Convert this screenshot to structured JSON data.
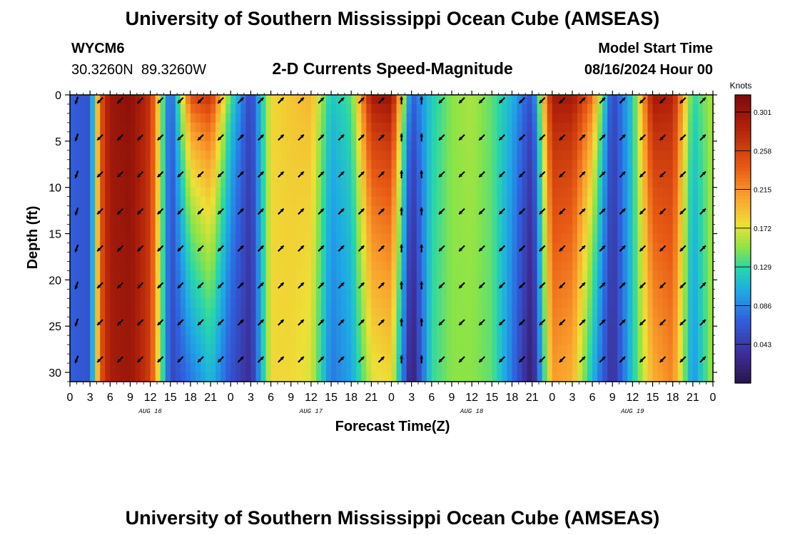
{
  "header": {
    "title": "University of Southern Mississippi Ocean Cube (AMSEAS)",
    "station_id": "WYCM6",
    "station_coords": "30.3260N  89.3260W",
    "plot_title": "2-D Currents Speed-Magnitude",
    "model_start_label": "Model Start Time",
    "model_start_value": "08/16/2024 Hour 00"
  },
  "footer": {
    "title": "University of Southern Mississippi Ocean Cube (AMSEAS)"
  },
  "chart_data": {
    "type": "heatmap",
    "title": "2-D Currents Speed-Magnitude",
    "xlabel": "Forecast Time(Z)",
    "ylabel": "Depth (ft)",
    "x_range_hours": [
      0,
      96
    ],
    "y_range_ft": [
      0,
      31
    ],
    "x_tick_hours": [
      0,
      3,
      6,
      9,
      12,
      15,
      18,
      21,
      24,
      27,
      30,
      33,
      36,
      39,
      42,
      45,
      48,
      51,
      54,
      57,
      60,
      63,
      66,
      69,
      72,
      75,
      78,
      81,
      84,
      87,
      90,
      93,
      96
    ],
    "x_tick_labels": [
      "0",
      "3",
      "6",
      "9",
      "12",
      "15",
      "18",
      "21",
      "0",
      "3",
      "6",
      "9",
      "12",
      "15",
      "18",
      "21",
      "0",
      "3",
      "6",
      "9",
      "12",
      "15",
      "18",
      "21",
      "0",
      "3",
      "6",
      "9",
      "12",
      "15",
      "18",
      "21",
      "0"
    ],
    "day_labels": [
      {
        "label": "AUG 16",
        "hour": 12
      },
      {
        "label": "AUG 17",
        "hour": 36
      },
      {
        "label": "AUG 18",
        "hour": 60
      },
      {
        "label": "AUG 19",
        "hour": 84
      }
    ],
    "y_ticks": [
      0,
      5,
      10,
      15,
      20,
      25,
      30
    ],
    "y_tick_labels": [
      "0",
      "5",
      "10",
      "15",
      "20",
      "25",
      "30"
    ],
    "colorbar": {
      "unit_label": "Knots",
      "range": [
        0.0,
        0.32
      ],
      "tick_values": [
        0.301,
        0.258,
        0.215,
        0.172,
        0.129,
        0.086,
        0.043
      ],
      "tick_labels": [
        "0.301",
        "0.258",
        "0.215",
        "0.172",
        "0.129",
        "0.086",
        "0.043"
      ]
    },
    "speed_profile": {
      "hours": [
        0,
        3,
        4.5,
        6,
        9,
        12,
        15,
        18,
        21,
        24,
        27,
        30,
        33,
        36,
        39,
        42,
        45,
        48,
        51,
        54,
        57,
        60,
        63,
        66,
        69,
        72,
        75,
        78,
        81,
        84,
        87,
        90,
        93,
        96
      ],
      "surface_knots": [
        0.07,
        0.06,
        0.24,
        0.3,
        0.31,
        0.27,
        0.06,
        0.26,
        0.28,
        0.14,
        0.05,
        0.18,
        0.19,
        0.2,
        0.12,
        0.14,
        0.3,
        0.31,
        0.07,
        0.12,
        0.15,
        0.16,
        0.14,
        0.11,
        0.06,
        0.3,
        0.3,
        0.24,
        0.05,
        0.12,
        0.3,
        0.29,
        0.13,
        0.16
      ],
      "bottom_knots": [
        0.07,
        0.06,
        0.24,
        0.29,
        0.3,
        0.26,
        0.05,
        0.08,
        0.11,
        0.06,
        0.03,
        0.18,
        0.18,
        0.17,
        0.08,
        0.1,
        0.17,
        0.18,
        0.01,
        0.13,
        0.15,
        0.15,
        0.14,
        0.08,
        0.01,
        0.21,
        0.2,
        0.11,
        0.03,
        0.12,
        0.2,
        0.22,
        0.09,
        0.16
      ]
    },
    "vector_hours": [
      1,
      4.5,
      7.5,
      10.5,
      13.5,
      16.5,
      19.5,
      22.5,
      25.5,
      28.5,
      31.5,
      34.5,
      37.5,
      40.5,
      43.5,
      46.5,
      49.5,
      52.5,
      55.5,
      58.5,
      61.5,
      64.5,
      67.5,
      70.5,
      73.5,
      76.5,
      79.5,
      82.5,
      85.5,
      88.5,
      91.5,
      94.5
    ],
    "vector_depths_ft": [
      0,
      4,
      8,
      12,
      16,
      20,
      24,
      28
    ],
    "vector_direction_pattern_deg": [
      200,
      225,
      225,
      225,
      225,
      225,
      225,
      225,
      45,
      45,
      45,
      45,
      45,
      45,
      45,
      45,
      0,
      0,
      225,
      225,
      225,
      225,
      225,
      225,
      225,
      45,
      45,
      45,
      225,
      225,
      225,
      45
    ]
  }
}
